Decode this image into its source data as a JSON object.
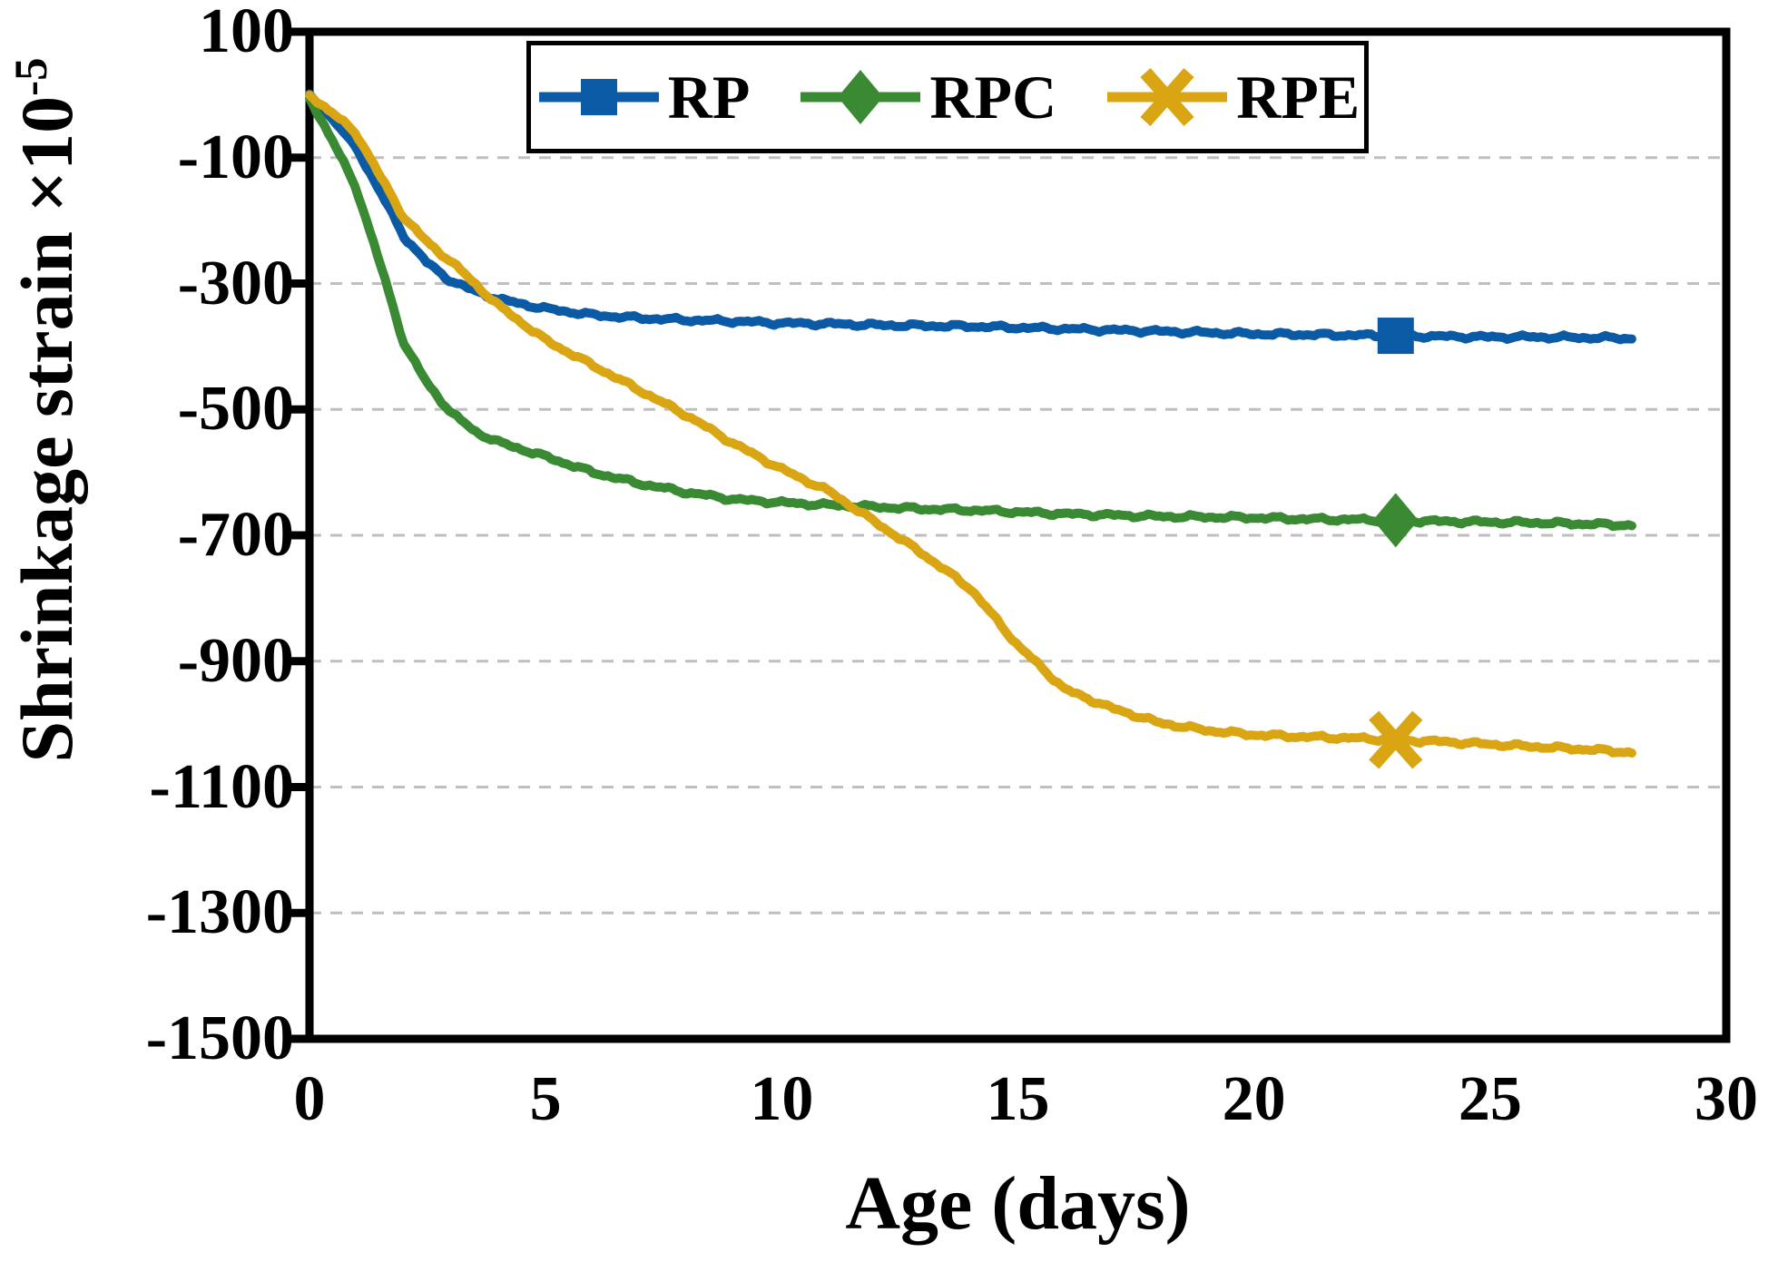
{
  "figure": {
    "background": "#FFFFFF",
    "axis_color": "#000000",
    "grid_color": "#BFBFBF"
  },
  "chart_data": {
    "type": "line",
    "title": "",
    "xlabel": "Age (days)",
    "ylabel_base": "Shrinkage strain ×10",
    "ylabel_exponent": "-5",
    "xlim": [
      0,
      30
    ],
    "ylim": [
      -1500,
      100
    ],
    "x_ticks": [
      0,
      5,
      10,
      15,
      20,
      25,
      30
    ],
    "y_ticks": [
      100,
      -100,
      -300,
      -500,
      -700,
      -900,
      -1100,
      -1300,
      -1500
    ],
    "grid": "horizontal-dashed",
    "legend_position": "top-center-inside",
    "x": [
      0,
      0.5,
      1,
      1.5,
      2,
      2.5,
      3,
      3.5,
      4,
      5,
      6,
      7,
      8,
      9,
      10,
      11,
      12,
      13,
      14,
      15,
      16,
      17,
      18,
      19,
      20,
      21,
      22,
      23,
      24,
      25,
      26,
      27,
      28
    ],
    "series": [
      {
        "name": "RP",
        "color": "#0B5AA6",
        "marker": "square",
        "marker_day": 23,
        "values": [
          0,
          -40,
          -85,
          -155,
          -225,
          -268,
          -296,
          -312,
          -325,
          -340,
          -350,
          -355,
          -358,
          -360,
          -363,
          -364,
          -366,
          -367,
          -368,
          -370,
          -372,
          -374,
          -376,
          -378,
          -380,
          -381,
          -382,
          -383,
          -384,
          -385,
          -385,
          -386,
          -387
        ]
      },
      {
        "name": "RPC",
        "color": "#3A8A33",
        "marker": "diamond",
        "marker_day": 23,
        "values": [
          -5,
          -75,
          -150,
          -270,
          -395,
          -460,
          -505,
          -535,
          -552,
          -575,
          -600,
          -618,
          -632,
          -643,
          -648,
          -652,
          -655,
          -658,
          -660,
          -663,
          -666,
          -668,
          -670,
          -671,
          -672,
          -674,
          -675,
          -676,
          -678,
          -679,
          -680,
          -682,
          -684
        ]
      },
      {
        "name": "RPE",
        "color": "#D9A512",
        "marker": "x",
        "marker_day": 23,
        "values": [
          0,
          -30,
          -62,
          -130,
          -195,
          -235,
          -265,
          -300,
          -335,
          -390,
          -430,
          -470,
          -510,
          -555,
          -595,
          -630,
          -680,
          -730,
          -785,
          -875,
          -945,
          -975,
          -998,
          -1010,
          -1017,
          -1020,
          -1022,
          -1025,
          -1028,
          -1032,
          -1036,
          -1040,
          -1045
        ]
      }
    ]
  }
}
